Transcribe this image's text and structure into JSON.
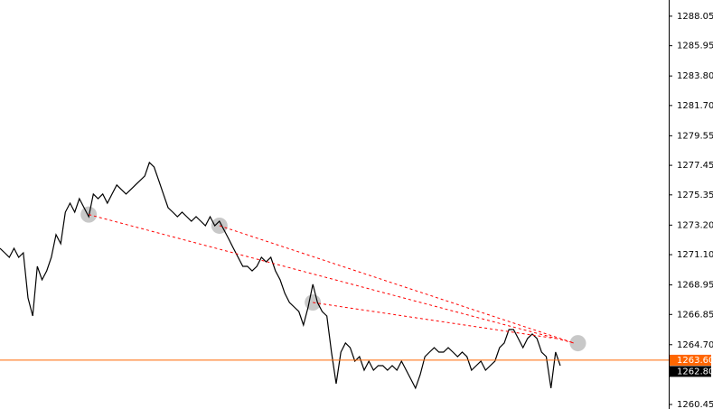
{
  "chart_data": {
    "type": "line",
    "series": [
      {
        "color": "#000000",
        "values": [
          1271.55,
          1271.23,
          1270.91,
          1271.55,
          1270.91,
          1271.23,
          1268.02,
          1266.74,
          1270.27,
          1269.31,
          1269.95,
          1270.91,
          1272.52,
          1271.88,
          1274.12,
          1274.76,
          1274.12,
          1275.08,
          1274.44,
          1273.8,
          1275.41,
          1275.08,
          1275.41,
          1274.76,
          1275.41,
          1276.05,
          1275.73,
          1275.41,
          1275.73,
          1276.05,
          1276.37,
          1276.69,
          1277.65,
          1277.33,
          1276.37,
          1275.41,
          1274.44,
          1274.12,
          1273.8,
          1274.12,
          1273.8,
          1273.48,
          1273.8,
          1273.48,
          1273.16,
          1273.8,
          1273.16,
          1273.48,
          1272.84,
          1272.2,
          1271.55,
          1270.91,
          1270.27,
          1270.27,
          1269.95,
          1270.27,
          1270.91,
          1270.59,
          1270.91,
          1269.95,
          1269.31,
          1268.35,
          1267.7,
          1267.38,
          1267.06,
          1266.1,
          1267.38,
          1268.99,
          1267.7,
          1267.06,
          1266.74,
          1264.17,
          1261.93,
          1264.17,
          1264.82,
          1264.49,
          1263.53,
          1263.85,
          1262.89,
          1263.53,
          1262.89,
          1263.21,
          1263.21,
          1262.89,
          1263.21,
          1262.89,
          1263.53,
          1262.89,
          1262.25,
          1261.61,
          1262.57,
          1263.85,
          1264.17,
          1264.49,
          1264.17,
          1264.17,
          1264.49,
          1264.17,
          1263.85,
          1264.17,
          1263.85,
          1262.89,
          1263.21,
          1263.53,
          1262.89,
          1263.21,
          1263.53,
          1264.49,
          1264.82,
          1265.78,
          1265.78,
          1265.14,
          1264.49,
          1265.14,
          1265.46,
          1265.14,
          1264.17,
          1263.85,
          1261.61,
          1264.17,
          1263.21
        ]
      }
    ],
    "trend_lines": [
      {
        "color": "#ff0000",
        "x": [
          19,
          123
        ],
        "y": [
          1273.95,
          1264.81
        ]
      },
      {
        "color": "#ff0000",
        "x": [
          47,
          123
        ],
        "y": [
          1273.16,
          1264.81
        ]
      },
      {
        "color": "#ff0000",
        "x": [
          67,
          119
        ],
        "y": [
          1267.7,
          1265.14
        ]
      }
    ],
    "price_markers": [
      {
        "value": 1263.6,
        "label": "1263.60",
        "color": "#ff6600"
      },
      {
        "value": 1262.8,
        "label": "1262.80",
        "color": "#000000"
      }
    ],
    "ylim": [
      1260.13,
      1289.2
    ],
    "yticks": [
      1288.05,
      1285.95,
      {
        "value": 1283.8,
        "label": "1283.80"
      },
      {
        "value": 1281.7,
        "label": "1281.70"
      },
      1279.55,
      1277.45,
      1275.35,
      {
        "value": 1273.2,
        "label": "1273.20"
      },
      {
        "value": 1271.1,
        "label": "1271.10"
      },
      1268.95,
      1266.85,
      {
        "value": 1264.7,
        "label": "1264.70"
      },
      1260.45
    ]
  }
}
